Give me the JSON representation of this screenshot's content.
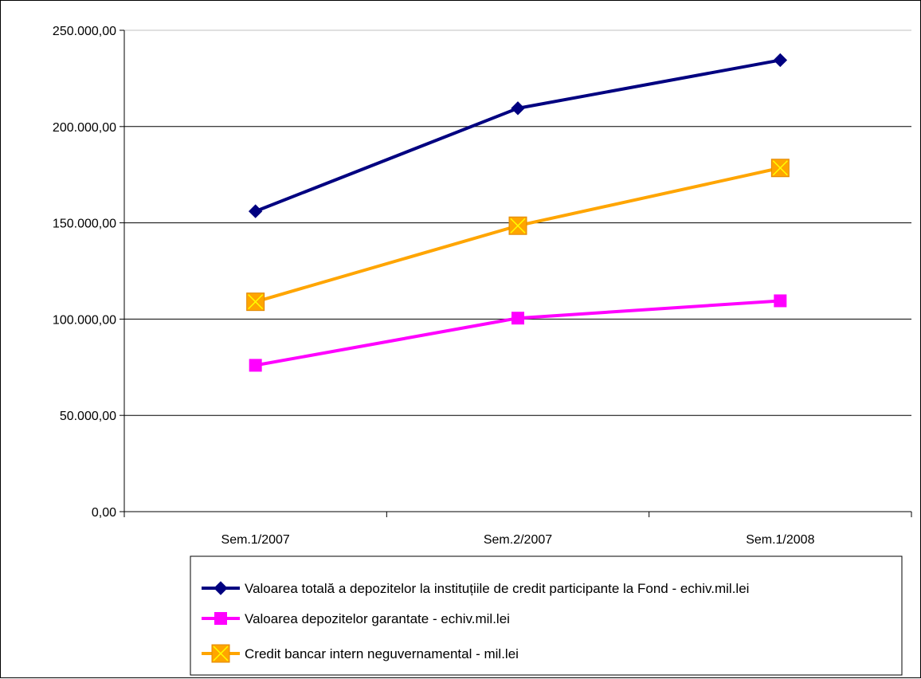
{
  "chart_data": {
    "type": "line",
    "title": "",
    "xlabel": "",
    "ylabel": "",
    "categories": [
      "Sem.1/2007",
      "Sem.2/2007",
      "Sem.1/2008"
    ],
    "ylim": [
      0,
      250000
    ],
    "yticks": [
      0,
      50000,
      100000,
      150000,
      200000,
      250000
    ],
    "ytick_labels": [
      "0,00",
      "50.000,00",
      "100.000,00",
      "150.000,00",
      "200.000,00",
      "250.000,00"
    ],
    "grid": true,
    "legend_position": "bottom",
    "series": [
      {
        "name": "Valoarea totală a depozitelor la instituțiile de credit participante la Fond - echiv.mil.lei",
        "values": [
          156000,
          209500,
          234500
        ],
        "color": "#000080",
        "marker": "diamond"
      },
      {
        "name": "Valoarea depozitelor garantate - echiv.mil.lei",
        "values": [
          76000,
          100500,
          109500
        ],
        "color": "#ff00ff",
        "marker": "square"
      },
      {
        "name": "Credit bancar intern neguvernamental - mil.lei",
        "values": [
          109000,
          148500,
          178500
        ],
        "color": "#ffa500",
        "marker": "x-square"
      }
    ]
  }
}
